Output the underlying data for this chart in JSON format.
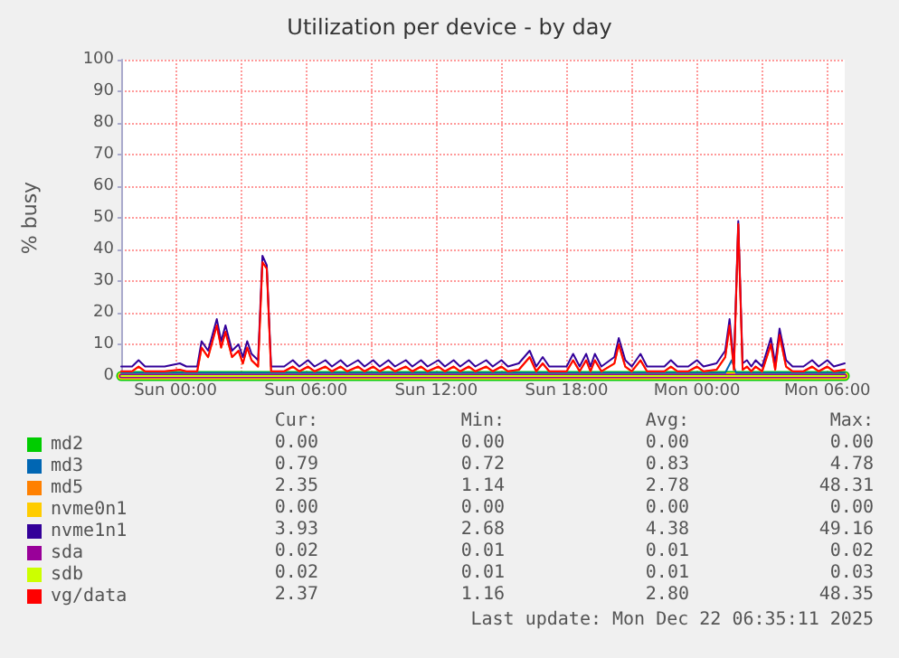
{
  "chart_data": {
    "type": "line",
    "title": "Utilization per device - by day",
    "ylabel": "% busy",
    "x": [
      "2025-12-20T21:30",
      "2025-12-20T22:00",
      "2025-12-20T22:18",
      "2025-12-20T22:36",
      "2025-12-20T23:30",
      "2025-12-21T00:12",
      "2025-12-21T00:30",
      "2025-12-21T01:00",
      "2025-12-21T01:12",
      "2025-12-21T01:30",
      "2025-12-21T01:54",
      "2025-12-21T02:06",
      "2025-12-21T02:18",
      "2025-12-21T02:36",
      "2025-12-21T02:54",
      "2025-12-21T03:06",
      "2025-12-21T03:18",
      "2025-12-21T03:30",
      "2025-12-21T03:48",
      "2025-12-21T04:00",
      "2025-12-21T04:12",
      "2025-12-21T04:24",
      "2025-12-21T05:00",
      "2025-12-21T05:24",
      "2025-12-21T05:42",
      "2025-12-21T06:06",
      "2025-12-21T06:24",
      "2025-12-21T06:54",
      "2025-12-21T07:12",
      "2025-12-21T07:36",
      "2025-12-21T07:54",
      "2025-12-21T08:24",
      "2025-12-21T08:42",
      "2025-12-21T09:06",
      "2025-12-21T09:24",
      "2025-12-21T09:48",
      "2025-12-21T10:06",
      "2025-12-21T10:36",
      "2025-12-21T10:54",
      "2025-12-21T11:18",
      "2025-12-21T11:36",
      "2025-12-21T12:06",
      "2025-12-21T12:24",
      "2025-12-21T12:48",
      "2025-12-21T13:06",
      "2025-12-21T13:30",
      "2025-12-21T13:48",
      "2025-12-21T14:18",
      "2025-12-21T14:36",
      "2025-12-21T15:00",
      "2025-12-21T15:18",
      "2025-12-21T15:48",
      "2025-12-21T16:18",
      "2025-12-21T16:36",
      "2025-12-21T16:54",
      "2025-12-21T17:12",
      "2025-12-21T18:00",
      "2025-12-21T18:18",
      "2025-12-21T18:36",
      "2025-12-21T18:54",
      "2025-12-21T19:06",
      "2025-12-21T19:18",
      "2025-12-21T19:36",
      "2025-12-21T20:12",
      "2025-12-21T20:24",
      "2025-12-21T20:42",
      "2025-12-21T21:00",
      "2025-12-21T21:24",
      "2025-12-21T21:42",
      "2025-12-21T22:30",
      "2025-12-21T22:48",
      "2025-12-21T23:06",
      "2025-12-21T23:36",
      "2025-12-22T00:00",
      "2025-12-22T00:18",
      "2025-12-22T00:54",
      "2025-12-22T01:18",
      "2025-12-22T01:30",
      "2025-12-22T01:42",
      "2025-12-22T01:54",
      "2025-12-22T02:06",
      "2025-12-22T02:18",
      "2025-12-22T02:30",
      "2025-12-22T02:42",
      "2025-12-22T03:00",
      "2025-12-22T03:24",
      "2025-12-22T03:36",
      "2025-12-22T03:48",
      "2025-12-22T04:06",
      "2025-12-22T04:24",
      "2025-12-22T04:54",
      "2025-12-22T05:18",
      "2025-12-22T05:36",
      "2025-12-22T06:00",
      "2025-12-22T06:18",
      "2025-12-22T06:48"
    ],
    "series": [
      {
        "name": "md2",
        "color": "#00cc00",
        "x": [
          "2025-12-20T21:30",
          "2025-12-22T06:48"
        ],
        "values": [
          0,
          0
        ]
      },
      {
        "name": "md3",
        "color": "#0066b3",
        "x": [
          "2025-12-20T21:30",
          "2025-12-22T01:18",
          "2025-12-22T01:36",
          "2025-12-22T01:48",
          "2025-12-22T06:48"
        ],
        "values": [
          1,
          1,
          5,
          1,
          1
        ]
      },
      {
        "name": "md5",
        "color": "#ff8000",
        "values": [
          1.4,
          1.4,
          2.9,
          1.4,
          1.4,
          1.9,
          1.4,
          1.4,
          8.9,
          5.9,
          15.9,
          8.9,
          13.9,
          5.9,
          7.9,
          3.9,
          8.9,
          4.9,
          2.9,
          35.9,
          33.9,
          1.4,
          1.4,
          2.9,
          1.4,
          2.9,
          1.4,
          2.9,
          1.4,
          2.9,
          1.4,
          2.9,
          1.4,
          2.9,
          1.4,
          2.9,
          1.4,
          2.9,
          1.4,
          2.9,
          1.4,
          2.9,
          1.4,
          2.9,
          1.4,
          2.9,
          1.4,
          2.9,
          1.4,
          2.9,
          1.4,
          1.9,
          5.9,
          1.4,
          3.9,
          1.4,
          1.4,
          4.9,
          1.4,
          4.9,
          1.4,
          4.9,
          1.4,
          3.9,
          9.9,
          2.9,
          1.4,
          4.9,
          1.4,
          1.4,
          2.9,
          1.4,
          1.4,
          2.9,
          1.4,
          1.9,
          5.9,
          15.9,
          1.9,
          48,
          1.9,
          2.9,
          1.4,
          2.9,
          1.4,
          9.9,
          1.9,
          12.9,
          2.9,
          1.4,
          1.4,
          2.9,
          1.4,
          2.9,
          1.4,
          1.9
        ]
      },
      {
        "name": "nvme0n1",
        "color": "#ffcc00",
        "x": [
          "2025-12-20T21:30",
          "2025-12-22T06:48"
        ],
        "values": [
          0,
          0
        ]
      },
      {
        "name": "nvme1n1",
        "color": "#330099",
        "values": [
          3,
          3,
          5,
          3,
          3,
          4,
          3,
          3,
          11,
          8,
          18,
          11,
          16,
          8,
          10,
          6,
          11,
          7,
          5,
          38,
          35,
          3,
          3,
          5,
          3,
          5,
          3,
          5,
          3,
          5,
          3,
          5,
          3,
          5,
          3,
          5,
          3,
          5,
          3,
          5,
          3,
          5,
          3,
          5,
          3,
          5,
          3,
          5,
          3,
          5,
          3,
          4,
          8,
          3,
          6,
          3,
          3,
          7,
          3,
          7,
          3,
          7,
          3,
          6,
          12,
          5,
          3,
          7,
          3,
          3,
          5,
          3,
          3,
          5,
          3,
          4,
          8,
          18,
          4,
          49,
          4,
          5,
          3,
          5,
          3,
          12,
          4,
          15,
          5,
          3,
          3,
          5,
          3,
          5,
          3,
          4
        ]
      },
      {
        "name": "sda",
        "color": "#990099",
        "x": [
          "2025-12-20T21:30",
          "2025-12-22T06:48"
        ],
        "values": [
          0,
          0
        ]
      },
      {
        "name": "sdb",
        "color": "#ccff00",
        "x": [
          "2025-12-20T21:30",
          "2025-12-22T06:48"
        ],
        "values": [
          0,
          0
        ]
      },
      {
        "name": "vg/data",
        "color": "#ff0000",
        "values": [
          1.5,
          1.5,
          3,
          1.5,
          1.5,
          2,
          1.5,
          1.5,
          9,
          6,
          16,
          9,
          14,
          6,
          8,
          4,
          9,
          5,
          3,
          36,
          34,
          1.5,
          1.5,
          3,
          1.5,
          3,
          1.5,
          3,
          1.5,
          3,
          1.5,
          3,
          1.5,
          3,
          1.5,
          3,
          1.5,
          3,
          1.5,
          3,
          1.5,
          3,
          1.5,
          3,
          1.5,
          3,
          1.5,
          3,
          1.5,
          3,
          1.5,
          2,
          6,
          1.5,
          4,
          1.5,
          1.5,
          5,
          1.5,
          5,
          1.5,
          5,
          1.5,
          4,
          10,
          3,
          1.5,
          5,
          1.5,
          1.5,
          3,
          1.5,
          1.5,
          3,
          1.5,
          2,
          6,
          16,
          2,
          48,
          2,
          3,
          1.5,
          3,
          1.5,
          10,
          2,
          13,
          3,
          1.5,
          1.5,
          3,
          1.5,
          3,
          1.5,
          2
        ]
      }
    ],
    "xlim": [
      "2025-12-20T21:30",
      "2025-12-22T06:48"
    ],
    "xticks": [
      {
        "value": "2025-12-21T00:00",
        "label": "Sun 00:00"
      },
      {
        "value": "2025-12-21T03:00",
        "label": null
      },
      {
        "value": "2025-12-21T06:00",
        "label": "Sun 06:00"
      },
      {
        "value": "2025-12-21T09:00",
        "label": null
      },
      {
        "value": "2025-12-21T12:00",
        "label": "Sun 12:00"
      },
      {
        "value": "2025-12-21T15:00",
        "label": null
      },
      {
        "value": "2025-12-21T18:00",
        "label": "Sun 18:00"
      },
      {
        "value": "2025-12-21T21:00",
        "label": null
      },
      {
        "value": "2025-12-22T00:00",
        "label": "Mon 00:00"
      },
      {
        "value": "2025-12-22T03:00",
        "label": null
      },
      {
        "value": "2025-12-22T06:00",
        "label": "Mon 06:00"
      }
    ],
    "ylim": [
      0,
      100
    ],
    "yticks": [
      0,
      10,
      20,
      30,
      40,
      50,
      60,
      70,
      80,
      90,
      100
    ],
    "grid": true,
    "legend": "bottom left",
    "line_style": "solid",
    "annotations": [
      "\tCur:\tMin:\tAvg:\tMax:",
      "\t0.00\t0.00\t0.00\t0.00",
      "\t0.79\t0.72\t0.83\t4.78",
      "\t2.35\t1.14\t2.78\t48.31",
      "\t0.00\t0.00\t0.00\t0.00",
      "\t3.93\t2.68\t4.38\t49.16",
      "\t0.02\t0.01\t0.01\t0.02",
      "\t0.02\t0.01\t0.01\t0.03",
      "\t2.37\t1.16\t2.80\t48.35",
      "Last update: Mon Dec 22 06:35:11 2025"
    ]
  }
}
